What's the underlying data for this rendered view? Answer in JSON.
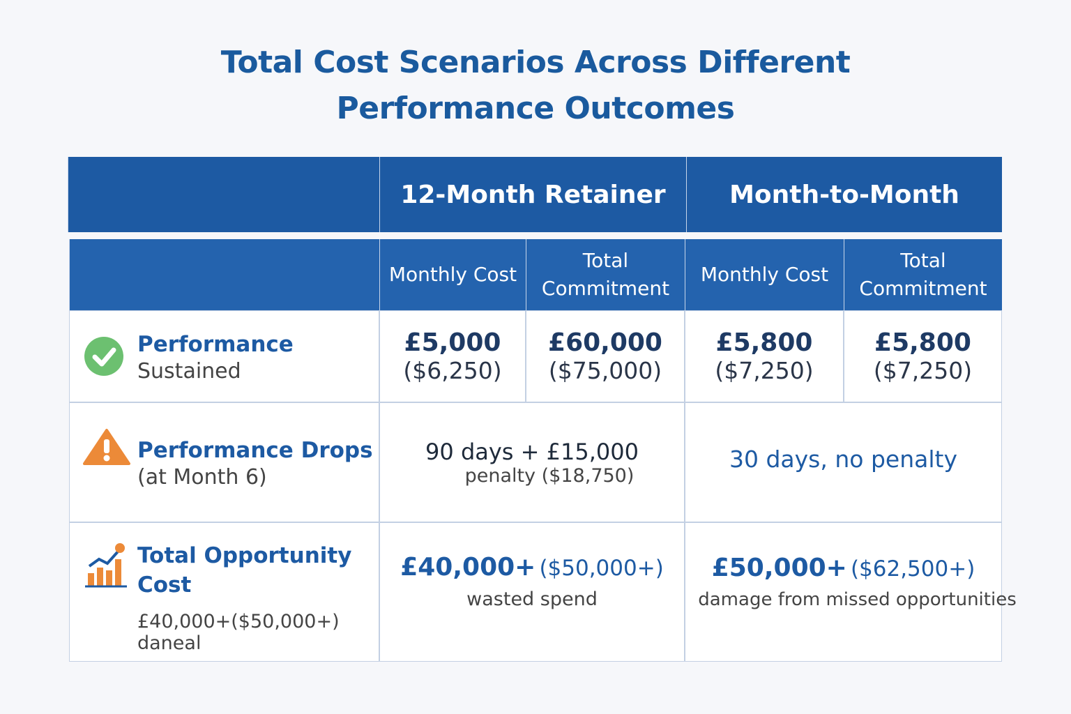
{
  "title_lines": [
    "Total Cost Scenarios Across Different",
    "Performance Outcomes"
  ],
  "table": {
    "groups": [
      "12-Month Retainer",
      "Month-to-Month"
    ],
    "subheaders": [
      "Monthly Cost",
      "Total Commitment",
      "Monthly Cost",
      "Total Commitment"
    ],
    "rows": [
      {
        "label": "Performance",
        "sublabel": "Sustained",
        "cells": [
          {
            "main": "£5,000",
            "usd": "($6,250)"
          },
          {
            "main": "£60,000",
            "usd": "($75,000)"
          },
          {
            "main": "£5,800",
            "usd": "($7,250)"
          },
          {
            "main": "£5,800",
            "usd": "($7,250)"
          }
        ]
      },
      {
        "label": "Performance Drops",
        "sublabel": "(at Month 6)",
        "retainer": {
          "main": "90 days + £15,000",
          "sub": "penalty ($18,750)"
        },
        "monthly": {
          "main": "30 days, no penalty"
        }
      },
      {
        "label": "Total Opportunity Cost",
        "note": [
          "£40,000+($50,000+)",
          "daneal"
        ],
        "retainer": {
          "main": "£40,000+",
          "usd": "($50,000+)",
          "sub": "wasted spend"
        },
        "monthly": {
          "main": "£50,000+",
          "usd": "($62,500+)",
          "sub": "damage from missed opportunities"
        }
      }
    ]
  }
}
